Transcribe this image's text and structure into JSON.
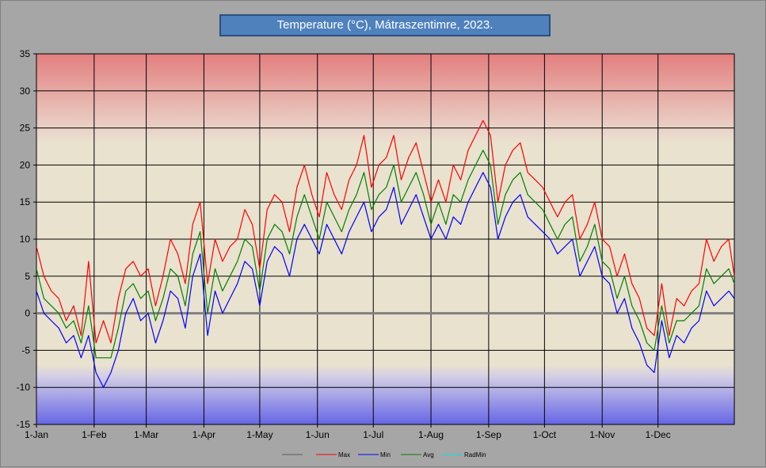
{
  "chart_data": {
    "type": "line",
    "title": "Temperature (°C), Mátraszentimre, 2023.",
    "xlabel": "",
    "ylabel": "",
    "ylim": [
      -15,
      35
    ],
    "yticks": [
      35,
      30,
      25,
      20,
      15,
      10,
      5,
      0,
      -5,
      -10,
      -15
    ],
    "x_tick_labels": [
      "1-Jan",
      "1-Feb",
      "1-Mar",
      "1-Apr",
      "1-May",
      "1-Jun",
      "1-Jul",
      "1-Aug",
      "1-Sep",
      "1-Oct",
      "1-Nov",
      "1-Dec"
    ],
    "x_tick_days": [
      0,
      31,
      59,
      90,
      120,
      151,
      181,
      212,
      243,
      273,
      304,
      334
    ],
    "xlim_days": [
      0,
      375
    ],
    "grid": true,
    "legend_position": "bottom",
    "colors": {
      "zero": "#808080",
      "max": "#ff0000",
      "min": "#0000ff",
      "avg": "#008000",
      "radmin": "#00e5e5"
    },
    "series": [
      {
        "key": "zero",
        "name": "",
        "x_days": [
          0,
          375
        ],
        "values": [
          0,
          0
        ]
      },
      {
        "key": "max",
        "name": "Max",
        "x_days": [
          0,
          4,
          8,
          12,
          16,
          20,
          24,
          28,
          32,
          36,
          40,
          44,
          48,
          52,
          56,
          60,
          64,
          68,
          72,
          76,
          80,
          84,
          88,
          92,
          96,
          100,
          104,
          108,
          112,
          116,
          120,
          124,
          128,
          132,
          136,
          140,
          144,
          148,
          152,
          156,
          160,
          164,
          168,
          172,
          176,
          180,
          184,
          188,
          192,
          196,
          200,
          204,
          208,
          212,
          216,
          220,
          224,
          228,
          232,
          236,
          240,
          244,
          248,
          252,
          256,
          260,
          264,
          268,
          272,
          276,
          280,
          284,
          288,
          292,
          296,
          300,
          304,
          308,
          312,
          316,
          320,
          324,
          328,
          332,
          336,
          340,
          344,
          348,
          352,
          356,
          360,
          364,
          368,
          372,
          375
        ],
        "values": [
          9,
          5,
          3,
          2,
          -1,
          1,
          -3,
          7,
          -4,
          -1,
          -4,
          2,
          6,
          7,
          5,
          6,
          1,
          5,
          10,
          8,
          4,
          12,
          15,
          4,
          10,
          7,
          9,
          10,
          14,
          12,
          6,
          14,
          16,
          15,
          11,
          17,
          20,
          16,
          13,
          19,
          16,
          14,
          18,
          20,
          24,
          17,
          20,
          21,
          24,
          18,
          21,
          23,
          19,
          15,
          18,
          15,
          20,
          18,
          22,
          24,
          26,
          24,
          15,
          20,
          22,
          23,
          19,
          18,
          17,
          15,
          13,
          15,
          16,
          10,
          12,
          15,
          10,
          9,
          5,
          8,
          4,
          2,
          -2,
          -3,
          4,
          -3,
          2,
          1,
          3,
          4,
          10,
          7,
          9,
          10,
          5
        ]
      },
      {
        "key": "min",
        "name": "Min",
        "x_days": [
          0,
          4,
          8,
          12,
          16,
          20,
          24,
          28,
          32,
          36,
          40,
          44,
          48,
          52,
          56,
          60,
          64,
          68,
          72,
          76,
          80,
          84,
          88,
          92,
          96,
          100,
          104,
          108,
          112,
          116,
          120,
          124,
          128,
          132,
          136,
          140,
          144,
          148,
          152,
          156,
          160,
          164,
          168,
          172,
          176,
          180,
          184,
          188,
          192,
          196,
          200,
          204,
          208,
          212,
          216,
          220,
          224,
          228,
          232,
          236,
          240,
          244,
          248,
          252,
          256,
          260,
          264,
          268,
          272,
          276,
          280,
          284,
          288,
          292,
          296,
          300,
          304,
          308,
          312,
          316,
          320,
          324,
          328,
          332,
          336,
          340,
          344,
          348,
          352,
          356,
          360,
          364,
          368,
          372,
          375
        ],
        "values": [
          3,
          0,
          -1,
          -2,
          -4,
          -3,
          -6,
          -3,
          -8,
          -10,
          -8,
          -5,
          0,
          2,
          -1,
          0,
          -4,
          -1,
          3,
          2,
          -2,
          5,
          8,
          -3,
          3,
          0,
          2,
          4,
          7,
          6,
          1,
          7,
          9,
          8,
          5,
          10,
          12,
          10,
          8,
          12,
          10,
          8,
          11,
          13,
          15,
          11,
          13,
          14,
          17,
          12,
          14,
          16,
          13,
          10,
          12,
          10,
          13,
          12,
          15,
          17,
          19,
          17,
          10,
          13,
          15,
          16,
          13,
          12,
          11,
          10,
          8,
          9,
          10,
          5,
          7,
          9,
          5,
          4,
          0,
          2,
          -2,
          -4,
          -7,
          -8,
          -1,
          -6,
          -3,
          -4,
          -2,
          -1,
          3,
          1,
          2,
          3,
          2
        ]
      },
      {
        "key": "avg",
        "name": "Avg",
        "x_days": [
          0,
          4,
          8,
          12,
          16,
          20,
          24,
          28,
          32,
          36,
          40,
          44,
          48,
          52,
          56,
          60,
          64,
          68,
          72,
          76,
          80,
          84,
          88,
          92,
          96,
          100,
          104,
          108,
          112,
          116,
          120,
          124,
          128,
          132,
          136,
          140,
          144,
          148,
          152,
          156,
          160,
          164,
          168,
          172,
          176,
          180,
          184,
          188,
          192,
          196,
          200,
          204,
          208,
          212,
          216,
          220,
          224,
          228,
          232,
          236,
          240,
          244,
          248,
          252,
          256,
          260,
          264,
          268,
          272,
          276,
          280,
          284,
          288,
          292,
          296,
          300,
          304,
          308,
          312,
          316,
          320,
          324,
          328,
          332,
          336,
          340,
          344,
          348,
          352,
          356,
          360,
          364,
          368,
          372,
          375
        ],
        "values": [
          6,
          2,
          1,
          0,
          -2,
          -1,
          -4,
          1,
          -6,
          -6,
          -6,
          -2,
          3,
          4,
          2,
          3,
          -1,
          2,
          6,
          5,
          1,
          8,
          11,
          0,
          6,
          3,
          5,
          7,
          10,
          9,
          3,
          10,
          12,
          11,
          8,
          13,
          16,
          13,
          10,
          15,
          13,
          11,
          14,
          16,
          19,
          14,
          16,
          17,
          20,
          15,
          17,
          19,
          16,
          12,
          15,
          12,
          16,
          15,
          18,
          20,
          22,
          20,
          12,
          16,
          18,
          19,
          16,
          15,
          14,
          12,
          10,
          12,
          13,
          7,
          9,
          12,
          7,
          6,
          2,
          5,
          1,
          -1,
          -4,
          -5,
          1,
          -4,
          -1,
          -1,
          0,
          1,
          6,
          4,
          5,
          6,
          4
        ]
      },
      {
        "key": "radmin",
        "name": "RadMin",
        "x_days": [],
        "values": []
      }
    ]
  }
}
